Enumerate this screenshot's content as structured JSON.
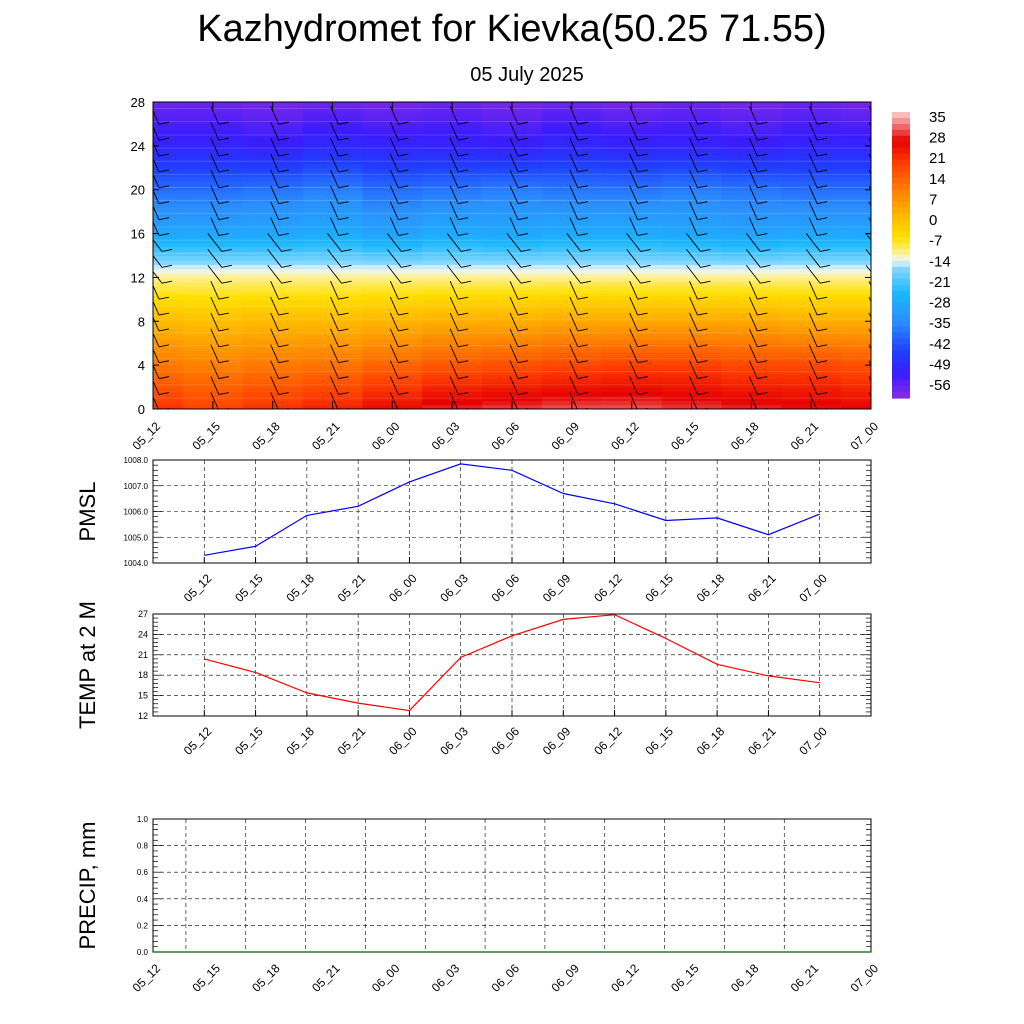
{
  "title": "Kazhydromet for Kievka(50.25 71.55)",
  "subtitle": "05 July 2025",
  "time_labels": [
    "05_12",
    "05_15",
    "05_18",
    "05_21",
    "06_00",
    "06_03",
    "06_06",
    "06_09",
    "06_12",
    "06_15",
    "06_18",
    "06_21",
    "07_00"
  ],
  "chart_data": [
    {
      "type": "heatmap",
      "name": "upper-air temperature cross-section",
      "x": [
        "05_12",
        "05_15",
        "05_18",
        "05_21",
        "06_00",
        "06_03",
        "06_06",
        "06_09",
        "06_12",
        "06_15",
        "06_18",
        "06_21",
        "07_00"
      ],
      "ylim": [
        0,
        28
      ],
      "yticks": [
        0,
        4,
        8,
        12,
        16,
        20,
        24,
        28
      ],
      "colorbar_labels": [
        "35",
        "28",
        "21",
        "14",
        "7",
        "0",
        "-7",
        "-14",
        "-21",
        "-28",
        "-35",
        "-42",
        "-49",
        "-56"
      ],
      "colorscale": {
        "min": -60,
        "max": 38,
        "stops": [
          [
            -60,
            "#8a2be2"
          ],
          [
            -52,
            "#3b1cff"
          ],
          [
            -44,
            "#1f3fff"
          ],
          [
            -34,
            "#2b8fff"
          ],
          [
            -24,
            "#1ab8ff"
          ],
          [
            -16,
            "#7fd6ff"
          ],
          [
            -13,
            "#e8f6ff"
          ],
          [
            -11,
            "#fff2a8"
          ],
          [
            -5,
            "#ffe000"
          ],
          [
            3,
            "#ffb400"
          ],
          [
            11,
            "#ff8000"
          ],
          [
            20,
            "#ff4000"
          ],
          [
            28,
            "#e60000"
          ],
          [
            34,
            "#f08080"
          ],
          [
            38,
            "#ffd0d0"
          ]
        ]
      },
      "temperature_profile": {
        "heights": [
          0,
          4,
          8,
          12,
          13,
          16,
          20,
          24,
          28
        ],
        "values": [
          [
            22,
            20,
            22,
            24,
            27,
            30,
            31,
            32,
            32,
            31,
            30,
            29,
            28
          ],
          [
            12,
            11,
            12,
            13,
            15,
            17,
            18,
            19,
            20,
            20,
            19,
            19,
            18
          ],
          [
            2,
            1,
            2,
            2,
            3,
            4,
            4,
            5,
            5,
            5,
            5,
            4,
            4
          ],
          [
            -10,
            -10,
            -10,
            -10,
            -10,
            -10,
            -10,
            -10,
            -10,
            -10,
            -10,
            -10,
            -10
          ],
          [
            -14,
            -14,
            -14,
            -14,
            -14,
            -14,
            -14,
            -14,
            -14,
            -14,
            -14,
            -14,
            -14
          ],
          [
            -28,
            -28,
            -28,
            -27,
            -29,
            -27,
            -28,
            -27,
            -27,
            -28,
            -29,
            -28,
            -28
          ],
          [
            -38,
            -38,
            -37,
            -36,
            -38,
            -37,
            -36,
            -37,
            -37,
            -36,
            -37,
            -38,
            -38
          ],
          [
            -50,
            -50,
            -51,
            -49,
            -50,
            -50,
            -51,
            -49,
            -50,
            -50,
            -51,
            -50,
            -50
          ],
          [
            -57,
            -57,
            -58,
            -57,
            -58,
            -57,
            -58,
            -57,
            -58,
            -57,
            -58,
            -57,
            -58
          ]
        ]
      },
      "wind_barbs": "present at each time column and level"
    },
    {
      "type": "line",
      "ylabel": "PMSL",
      "x": [
        "05_12",
        "05_15",
        "05_18",
        "05_21",
        "06_00",
        "06_03",
        "06_06",
        "06_09",
        "06_12",
        "06_15",
        "06_18",
        "06_21",
        "07_00"
      ],
      "series": [
        {
          "values": [
            1004.3,
            1004.65,
            1005.85,
            1006.2,
            1007.15,
            1007.85,
            1007.6,
            1006.7,
            1006.3,
            1005.65,
            1005.75,
            1005.1,
            1005.9
          ],
          "color": "#0000ff"
        }
      ],
      "ylim": [
        1004.0,
        1008.0
      ],
      "yticks": [
        "1004.0",
        "1005.0",
        "1006.0",
        "1007.0",
        "1008.0"
      ],
      "grid": "dashed"
    },
    {
      "type": "line",
      "ylabel": "TEMP at 2 M",
      "x": [
        "05_12",
        "05_15",
        "05_18",
        "05_21",
        "06_00",
        "06_03",
        "06_06",
        "06_09",
        "06_12",
        "06_15",
        "06_18",
        "06_21",
        "07_00"
      ],
      "series": [
        {
          "values": [
            20.4,
            18.4,
            15.4,
            13.9,
            12.8,
            20.6,
            23.8,
            26.2,
            26.9,
            23.4,
            19.6,
            17.9,
            16.9
          ],
          "color": "#ff0000"
        }
      ],
      "ylim": [
        12,
        27
      ],
      "yticks": [
        "12",
        "15",
        "18",
        "21",
        "24",
        "27"
      ],
      "grid": "dashed"
    },
    {
      "type": "line",
      "ylabel": "PRECIP, mm",
      "x": [
        "05_12",
        "05_15",
        "05_18",
        "05_21",
        "06_00",
        "06_03",
        "06_06",
        "06_09",
        "06_12",
        "06_15",
        "06_18",
        "06_21",
        "07_00"
      ],
      "series": [
        {
          "values": [
            0,
            0,
            0,
            0,
            0,
            0,
            0,
            0,
            0,
            0,
            0,
            0,
            0
          ],
          "color": "#006400"
        }
      ],
      "ylim": [
        0.0,
        1.0
      ],
      "yticks": [
        "0.0",
        "0.2",
        "0.4",
        "0.6",
        "0.8",
        "1.0"
      ],
      "grid": "dashed"
    }
  ]
}
